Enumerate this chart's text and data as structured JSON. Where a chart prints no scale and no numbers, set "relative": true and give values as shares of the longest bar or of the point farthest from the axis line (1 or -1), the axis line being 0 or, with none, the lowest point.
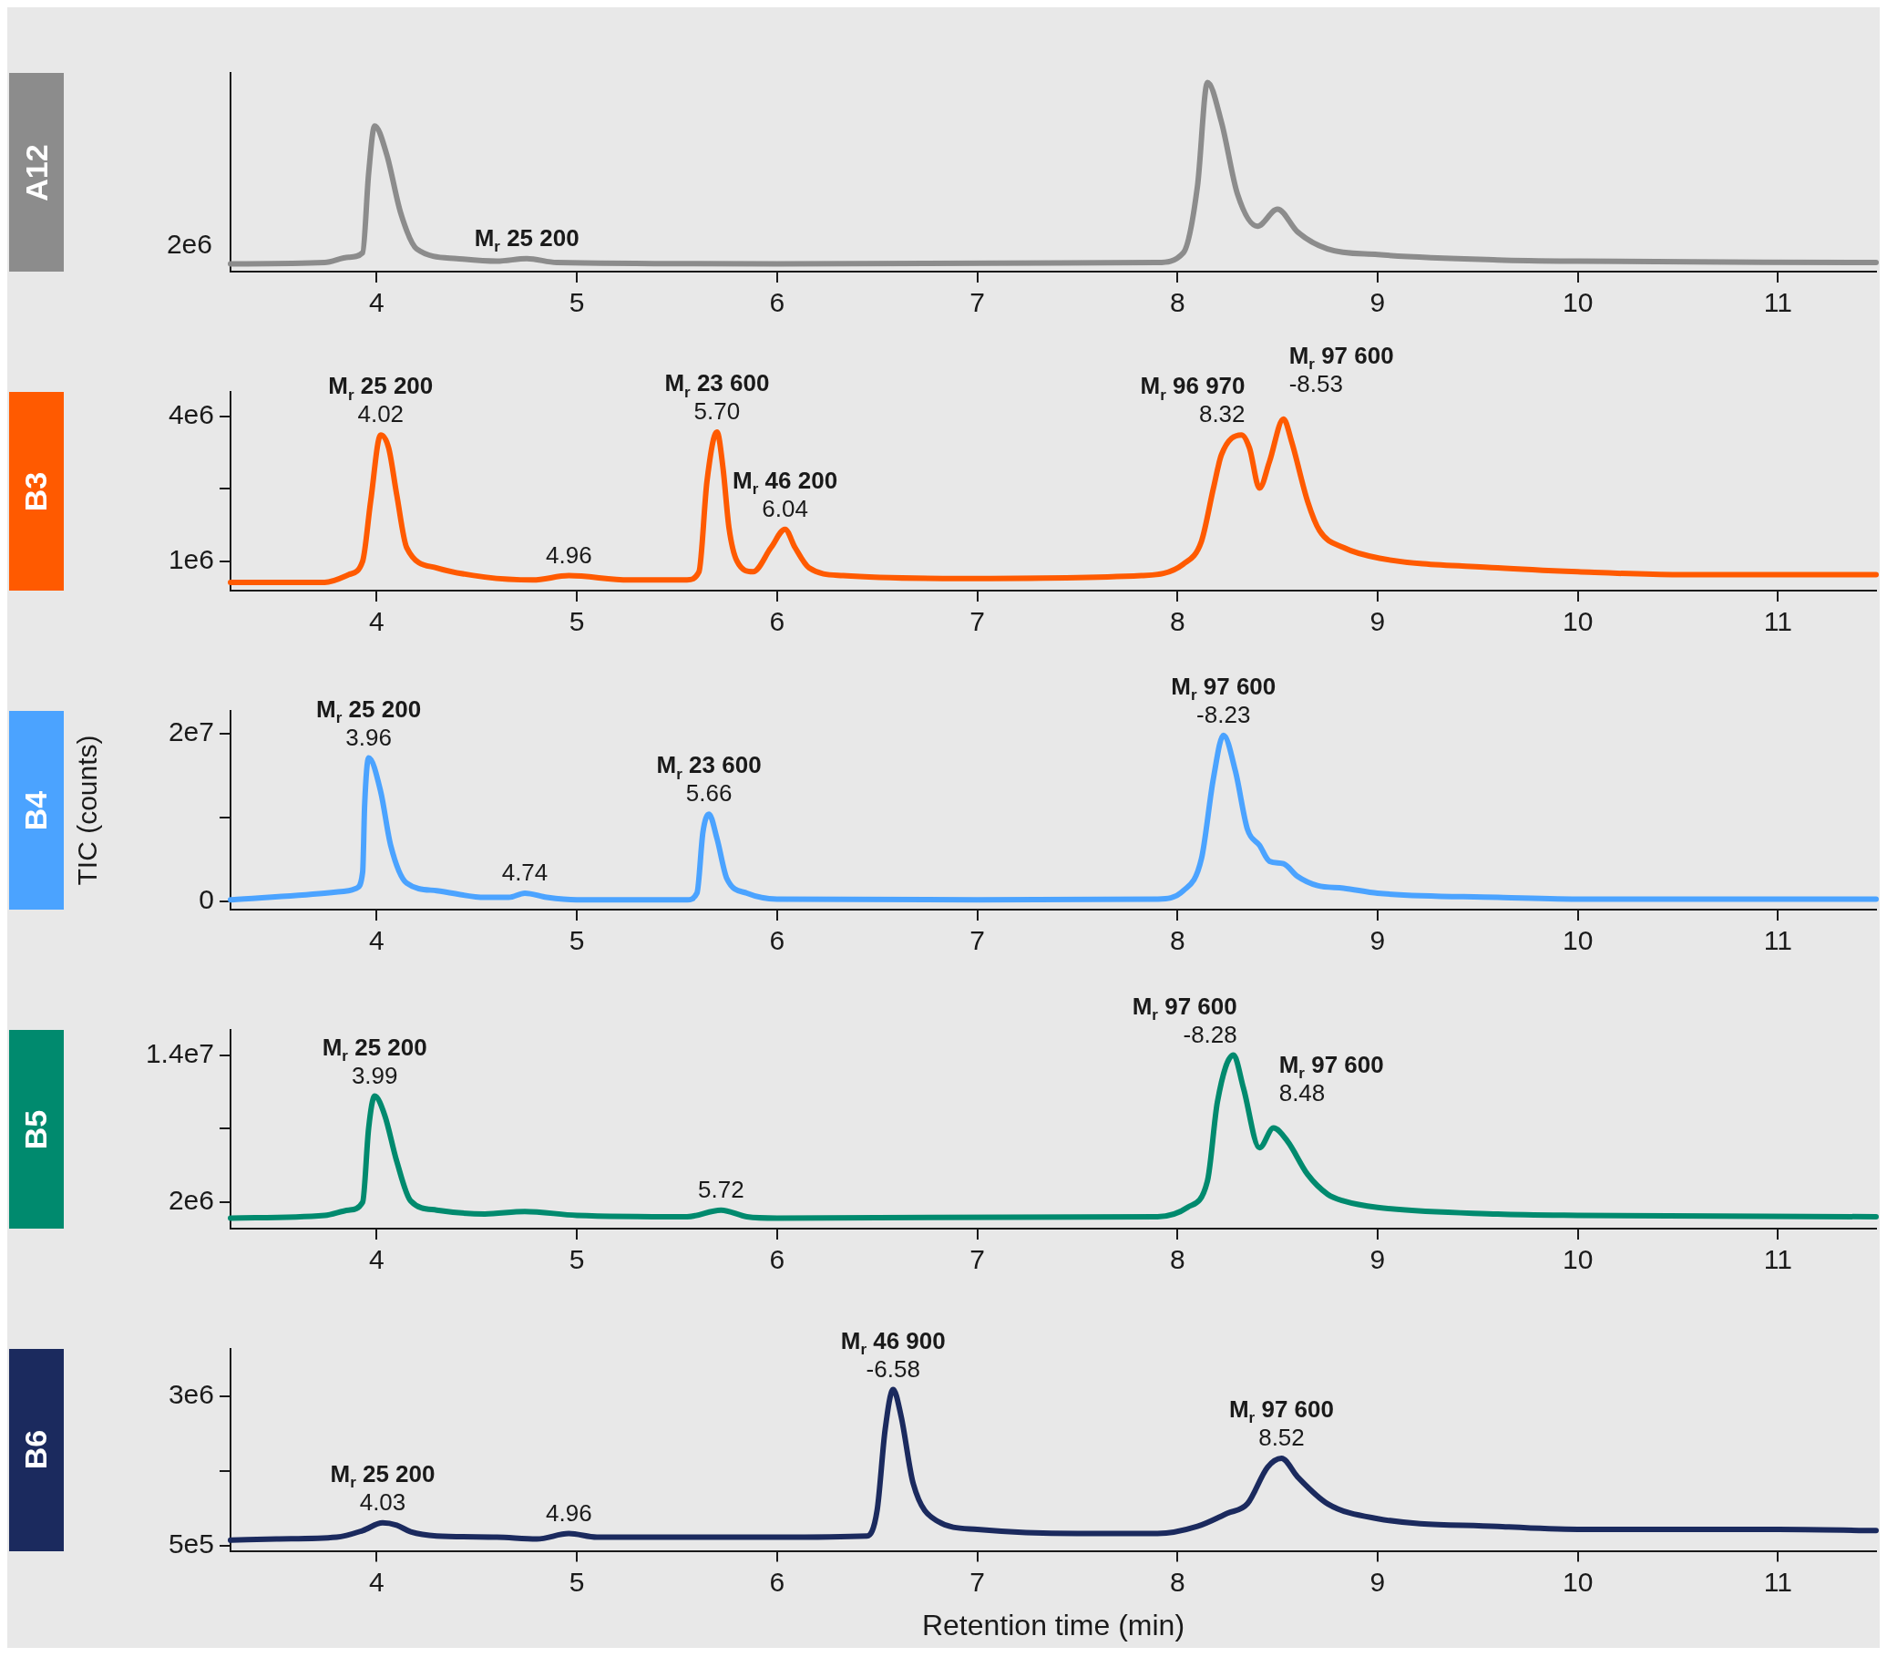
{
  "chart_data": [
    {
      "type": "line",
      "title": "A12",
      "relative": true,
      "color": "#8c8c8c",
      "xlim": [
        3.27,
        11.49
      ],
      "xticks": [
        4,
        5,
        6,
        7,
        8,
        9,
        10,
        11
      ],
      "x": [
        3.27,
        3.74,
        3.86,
        3.93,
        3.96,
        3.99,
        4.05,
        4.12,
        4.2,
        4.4,
        4.6,
        4.75,
        4.9,
        6.0,
        7.9,
        8.03,
        8.1,
        8.15,
        8.22,
        8.3,
        8.4,
        8.5,
        8.6,
        8.75,
        9.0,
        9.6,
        10.0,
        11.49
      ],
      "values": [
        0.041,
        0.048,
        0.076,
        0.1,
        0.52,
        0.77,
        0.62,
        0.31,
        0.12,
        0.069,
        0.055,
        0.069,
        0.048,
        0.041,
        0.048,
        0.1,
        0.45,
        1,
        0.79,
        0.41,
        0.24,
        0.33,
        0.21,
        0.12,
        0.09,
        0.062,
        0.055,
        0.048
      ],
      "annotations": [
        "2e6",
        {
          "text": "M$_{r}$ 25 200",
          "x": 4.75,
          "y": 0.069
        }
      ]
    },
    {
      "type": "line",
      "title": "B3",
      "color": "#ff5a00",
      "xlim": [
        3.27,
        11.49
      ],
      "xticks": [
        4,
        5,
        6,
        7,
        8,
        9,
        10,
        11
      ],
      "ylim": [
        390000,
        4500000
      ],
      "yticks": [
        {
          "value": 1000000,
          "label": "1e6"
        },
        {
          "value": 2500000,
          "label": null
        },
        {
          "value": 4000000,
          "label": "4e6"
        }
      ],
      "x": [
        3.27,
        3.74,
        3.86,
        3.93,
        3.97,
        4.02,
        4.06,
        4.1,
        4.15,
        4.3,
        4.54,
        4.78,
        4.96,
        5.26,
        5.55,
        5.61,
        5.65,
        5.7,
        5.73,
        5.76,
        5.8,
        5.88,
        5.97,
        6.04,
        6.09,
        6.16,
        6.33,
        6.92,
        7.82,
        8.03,
        8.12,
        8.18,
        8.22,
        8.32,
        8.36,
        8.41,
        8.46,
        8.53,
        8.57,
        8.65,
        8.71,
        8.83,
        9.01,
        9.6,
        10.0,
        10.5,
        11.49
      ],
      "values": [
        560000.0,
        560000.0,
        720000.0,
        1000000.0,
        2240000.0,
        3610000.0,
        3340000.0,
        2380000.0,
        1280000.0,
        860000.0,
        670000.0,
        610000.0,
        700000.0,
        610000.0,
        610000.0,
        780000.0,
        2650000.0,
        3670000.0,
        2930000.0,
        1690000.0,
        1000000.0,
        780000.0,
        1280000.0,
        1660000.0,
        1280000.0,
        860000.0,
        700000.0,
        640000.0,
        700000.0,
        940000.0,
        1410000.0,
        2510000.0,
        3200000.0,
        3610000.0,
        3340000.0,
        2510000.0,
        3060000.0,
        3940000.0,
        3480000.0,
        2240000.0,
        1630000.0,
        1280000.0,
        1060000.0,
        860000.0,
        780000.0,
        720000.0,
        720000.0
      ],
      "annotations": [
        {
          "text": "M$_{r}$ 25 200",
          "x": 4.02,
          "y": 3610000.0
        },
        {
          "text": "4.02",
          "x": 4.02,
          "y": 3610000.0
        },
        {
          "text": "4.96",
          "x": 4.96,
          "y": 700000.0
        },
        {
          "text": "M$_{r}$ 23 600",
          "x": 5.7,
          "y": 3670000.0
        },
        {
          "text": "5.70",
          "x": 5.7,
          "y": 3670000.0
        },
        {
          "text": "M$_{r}$ 46 200",
          "x": 6.04,
          "y": 1660000.0
        },
        {
          "text": "6.04",
          "x": 6.04,
          "y": 1660000.0
        },
        {
          "text": "M$_{r}$ 96 970",
          "x": 8.32,
          "y": 3610000.0
        },
        {
          "text": "8.32",
          "x": 8.32,
          "y": 3610000.0
        },
        {
          "text": "M$_{r}$ 97 600",
          "x": 8.53,
          "y": 3940000.0
        },
        {
          "text": "-8.53",
          "x": 8.53,
          "y": 3940000.0
        }
      ]
    },
    {
      "type": "line",
      "title": "B4",
      "ylabel": "TIC (counts)",
      "color": "#4ba3ff",
      "xlim": [
        3.27,
        11.49
      ],
      "xticks": [
        4,
        5,
        6,
        7,
        8,
        9,
        10,
        11
      ],
      "ylim": [
        -960000,
        22700000
      ],
      "yticks": [
        {
          "value": 0,
          "label": "0"
        },
        {
          "value": 10000000,
          "label": null
        },
        {
          "value": 20000000,
          "label": "2e7"
        }
      ],
      "x": [
        3.27,
        3.74,
        3.86,
        3.9,
        3.93,
        3.94,
        3.96,
        4.02,
        4.07,
        4.15,
        4.3,
        4.54,
        4.66,
        4.74,
        4.85,
        5.0,
        5.55,
        5.6,
        5.63,
        5.66,
        5.7,
        5.75,
        5.85,
        6.0,
        7.0,
        7.9,
        8.03,
        8.12,
        8.18,
        8.23,
        8.29,
        8.35,
        8.41,
        8.46,
        8.53,
        8.6,
        8.7,
        8.83,
        9.0,
        9.6,
        10.0,
        11.49
      ],
      "values": [
        200000.0,
        1000000.0,
        1300000.0,
        1600000.0,
        3500000.0,
        11500000.0,
        17100000.0,
        13100000.0,
        6700000.0,
        2200000.0,
        1300000.0,
        500000.0,
        500000.0,
        1000000.0,
        500000.0,
        200000.0,
        200000.0,
        1000000.0,
        8300000.0,
        10400000.0,
        7500000.0,
        2700000.0,
        1000000.0,
        300000.0,
        200000.0,
        300000.0,
        1300000.0,
        5100000.0,
        14700000.0,
        19800000.0,
        15500000.0,
        8600000.0,
        6700000.0,
        4800000.0,
        4500000.0,
        3000000.0,
        1900000.0,
        1600000.0,
        1000000.0,
        500000.0,
        300000.0,
        300000.0
      ],
      "annotations": [
        {
          "text": "M$_{r}$ 25 200",
          "x": 3.96,
          "y": 17100000.0
        },
        {
          "text": "3.96",
          "x": 3.96,
          "y": 17100000.0
        },
        {
          "text": "4.74",
          "x": 4.74,
          "y": 1000000.0
        },
        {
          "text": "M$_{r}$ 23 600",
          "x": 5.66,
          "y": 10400000.0
        },
        {
          "text": "5.66",
          "x": 5.66,
          "y": 10400000.0
        },
        {
          "text": "M$_{r}$ 97 600",
          "x": 8.23,
          "y": 19800000.0
        },
        {
          "text": "-8.23",
          "x": 8.23,
          "y": 19800000.0
        }
      ]
    },
    {
      "type": "line",
      "title": "B5",
      "color": "#008a6e",
      "xlim": [
        3.27,
        11.49
      ],
      "xticks": [
        4,
        5,
        6,
        7,
        8,
        9,
        10,
        11
      ],
      "ylim": [
        -160000,
        16050000
      ],
      "yticks": [
        {
          "value": 2000000,
          "label": "2e6"
        },
        {
          "value": 8000000,
          "label": null
        },
        {
          "value": 14000000,
          "label": "1.4e7"
        }
      ],
      "x": [
        3.27,
        3.74,
        3.86,
        3.93,
        3.96,
        3.99,
        4.04,
        4.1,
        4.17,
        4.3,
        4.54,
        4.74,
        5.0,
        5.55,
        5.72,
        5.85,
        6.0,
        7.9,
        8.05,
        8.15,
        8.2,
        8.28,
        8.33,
        8.41,
        8.48,
        8.55,
        8.65,
        8.75,
        8.83,
        9.0,
        9.6,
        10.0,
        11.49
      ],
      "values": [
        700000.0,
        920000.0,
        1350000.0,
        2000000.0,
        8050000.0,
        10650000.0,
        9100000.0,
        5350000.0,
        2100000.0,
        1350000.0,
        1030000.0,
        1240000.0,
        920000.0,
        810000.0,
        1350000.0,
        810000.0,
        700000.0,
        810000.0,
        1570000.0,
        3730000.0,
        10200000.0,
        14000000.0,
        11300000.0,
        6430000.0,
        8050000.0,
        6970000.0,
        4270000.0,
        2650000.0,
        2100000.0,
        1570000.0,
        1030000.0,
        920000.0,
        810000.0
      ],
      "annotations": [
        {
          "text": "M$_{r}$ 25 200",
          "x": 3.99,
          "y": 10650000.0
        },
        {
          "text": "3.99",
          "x": 3.99,
          "y": 10650000.0
        },
        {
          "text": "5.72",
          "x": 5.72,
          "y": 1350000.0
        },
        {
          "text": "M$_{r}$ 97 600",
          "x": 8.28,
          "y": 14000000.0
        },
        {
          "text": "-8.28",
          "x": 8.28,
          "y": 14000000.0
        },
        {
          "text": "M$_{r}$ 97 600",
          "x": 8.48,
          "y": 8050000.0
        },
        {
          "text": "8.48",
          "x": 8.48,
          "y": 8050000.0
        }
      ]
    },
    {
      "type": "line",
      "title": "B6",
      "xlabel": "Retention time (min)",
      "color": "#1b2a5e",
      "xlim": [
        3.27,
        11.49
      ],
      "xticks": [
        4,
        5,
        6,
        7,
        8,
        9,
        10,
        11
      ],
      "ylim": [
        410000,
        3790000
      ],
      "yticks": [
        {
          "value": 500000,
          "label": "5e5"
        },
        {
          "value": 1750000,
          "label": null
        },
        {
          "value": 3000000,
          "label": "3e6"
        }
      ],
      "x": [
        3.27,
        3.5,
        3.8,
        3.93,
        4.03,
        4.1,
        4.17,
        4.3,
        4.6,
        4.8,
        4.96,
        5.1,
        6.0,
        6.45,
        6.5,
        6.54,
        6.58,
        6.62,
        6.68,
        6.8,
        7.0,
        7.5,
        7.9,
        8.1,
        8.25,
        8.35,
        8.45,
        8.52,
        8.6,
        8.75,
        9.0,
        9.6,
        10.0,
        11.0,
        11.49
      ],
      "values": [
        590000.0,
        610000.0,
        640000.0,
        750000.0,
        880000.0,
        840000.0,
        730000.0,
        660000.0,
        640000.0,
        610000.0,
        700000.0,
        640000.0,
        640000.0,
        660000.0,
        1090000.0,
        2440000.0,
        3110000.0,
        2660000.0,
        1540000.0,
        910000.0,
        770000.0,
        700000.0,
        700000.0,
        820000.0,
        1040000.0,
        1200000.0,
        1810000.0,
        1960000.0,
        1650000.0,
        1200000.0,
        950000.0,
        820000.0,
        770000.0,
        770000.0,
        750000.0
      ],
      "annotations": [
        {
          "text": "M$_{r}$ 25 200",
          "x": 4.03,
          "y": 880000.0
        },
        {
          "text": "4.03",
          "x": 4.03,
          "y": 880000.0
        },
        {
          "text": "4.96",
          "x": 4.96,
          "y": 700000.0
        },
        {
          "text": "M$_{r}$ 46 900",
          "x": 6.58,
          "y": 3110000.0
        },
        {
          "text": "-6.58",
          "x": 6.58,
          "y": 3110000.0
        },
        {
          "text": "M$_{r}$ 97 600",
          "x": 8.52,
          "y": 1960000.0
        },
        {
          "text": "8.52",
          "x": 8.52,
          "y": 1960000.0
        }
      ]
    }
  ]
}
